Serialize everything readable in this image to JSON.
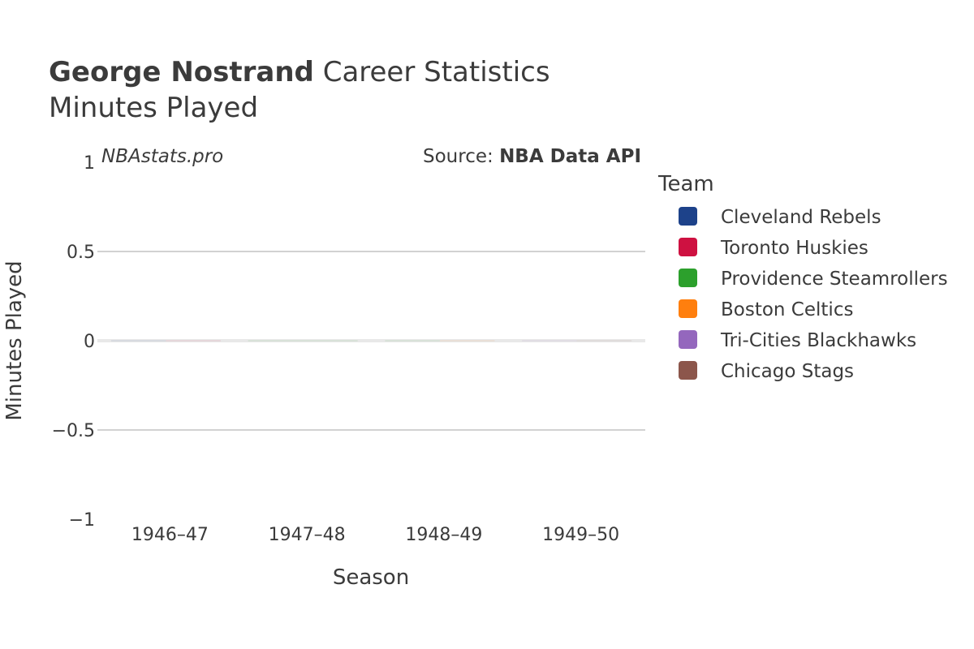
{
  "header": {
    "title_bold": "George Nostrand",
    "title_rest": " Career Statistics",
    "subtitle": "Minutes Played"
  },
  "annotations": {
    "site": "NBAstats.pro",
    "source_prefix": "Source: ",
    "source_name": "NBA Data API"
  },
  "legend": {
    "title": "Team",
    "items": [
      {
        "label": "Cleveland Rebels",
        "color": "#1d428a"
      },
      {
        "label": "Toronto Huskies",
        "color": "#ce1141"
      },
      {
        "label": "Providence Steamrollers",
        "color": "#2ca02c"
      },
      {
        "label": "Boston Celtics",
        "color": "#ff7f0e"
      },
      {
        "label": "Tri-Cities Blackhawks",
        "color": "#9467bd"
      },
      {
        "label": "Chicago Stags",
        "color": "#8c564b"
      }
    ]
  },
  "chart_data": {
    "type": "bar",
    "xlabel": "Season",
    "ylabel": "Minutes Played",
    "categories": [
      "1946–47",
      "1947–48",
      "1948–49",
      "1949–50"
    ],
    "ylim": [
      -1,
      1
    ],
    "yticks": [
      1,
      0.5,
      0,
      -0.5,
      -1
    ],
    "ytick_labels": [
      "1",
      "0.5",
      "0",
      "−0.5",
      "−1"
    ],
    "series": [
      {
        "name": "Cleveland Rebels",
        "values": [
          0,
          null,
          null,
          null
        ]
      },
      {
        "name": "Toronto Huskies",
        "values": [
          0,
          null,
          null,
          null
        ]
      },
      {
        "name": "Providence Steamrollers",
        "values": [
          null,
          0,
          0,
          null
        ]
      },
      {
        "name": "Boston Celtics",
        "values": [
          null,
          null,
          0,
          null
        ]
      },
      {
        "name": "Tri-Cities Blackhawks",
        "values": [
          null,
          null,
          null,
          0
        ]
      },
      {
        "name": "Chicago Stags",
        "values": [
          null,
          null,
          null,
          0
        ]
      }
    ],
    "grid": true,
    "legend_position": "right"
  }
}
